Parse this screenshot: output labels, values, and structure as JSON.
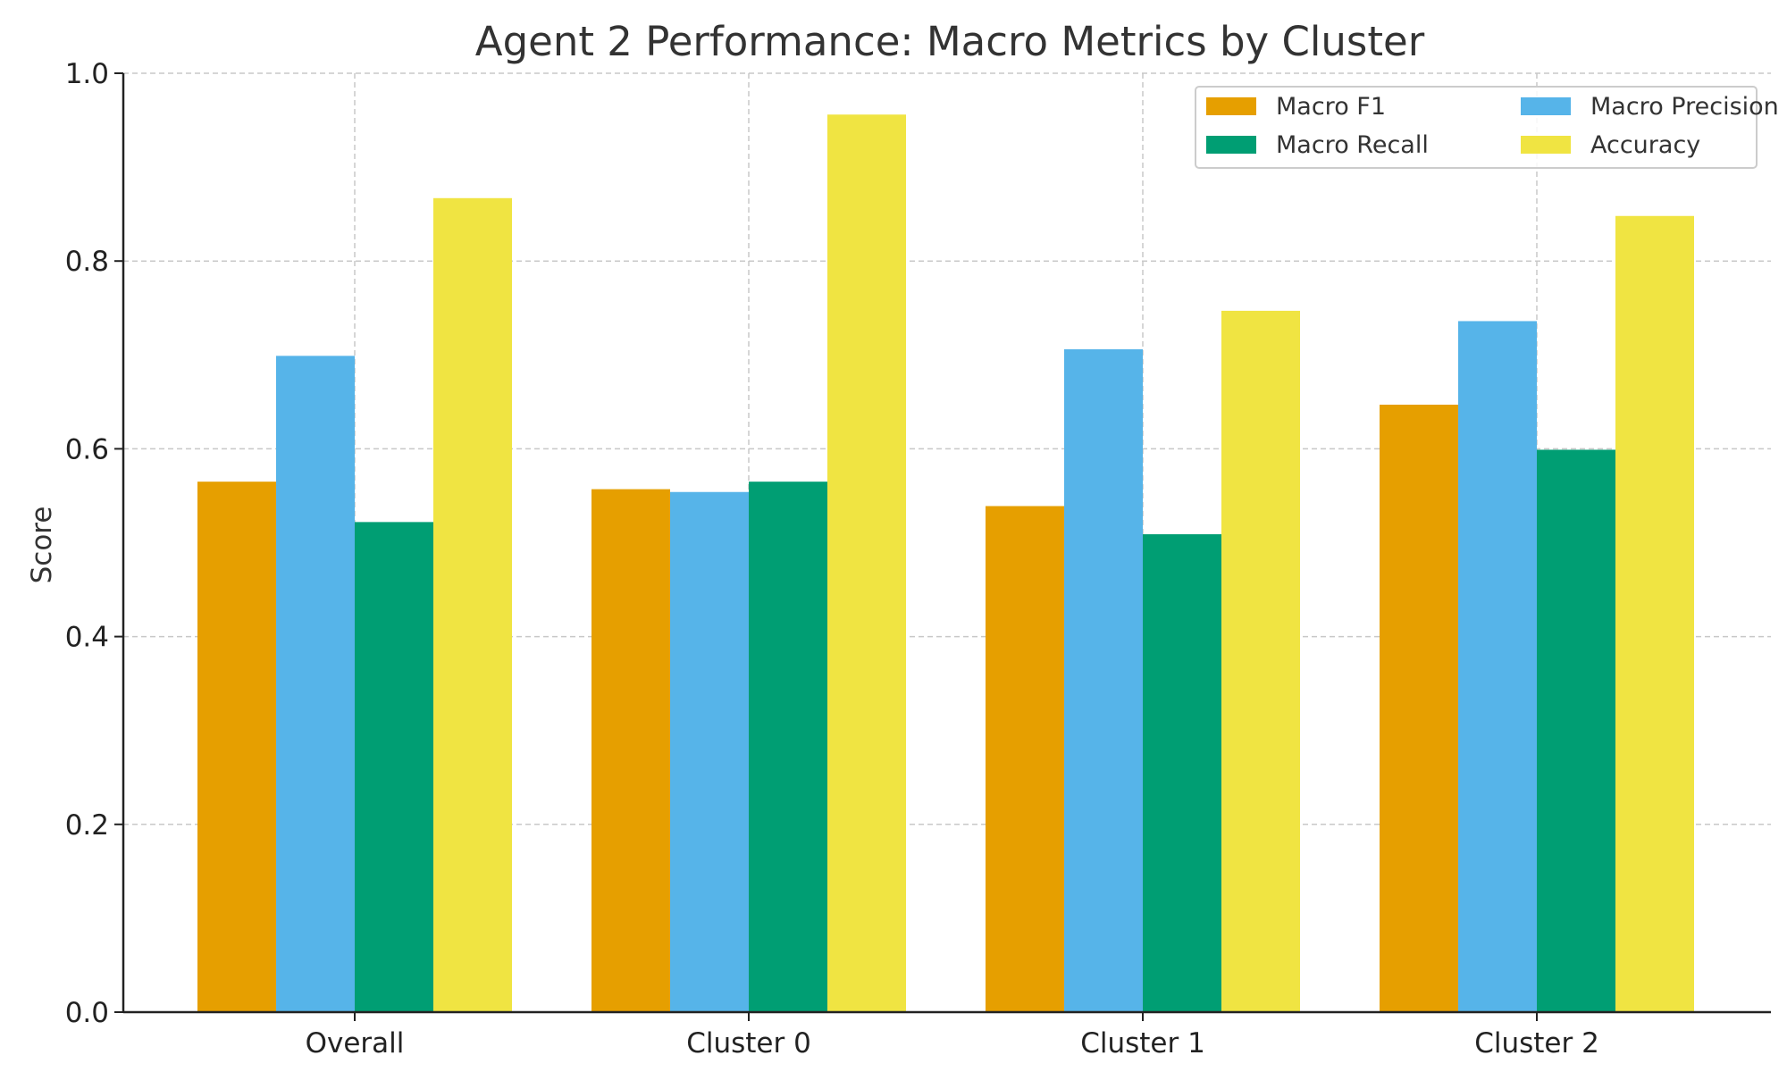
{
  "chart_data": {
    "type": "bar",
    "title": "Agent 2 Performance: Macro Metrics by Cluster",
    "xlabel": "",
    "ylabel": "Score",
    "ylim": [
      0,
      1.0
    ],
    "yticks": [
      "0.0",
      "0.2",
      "0.4",
      "0.6",
      "0.8",
      "1.0"
    ],
    "ytick_values": [
      0.0,
      0.2,
      0.4,
      0.6,
      0.8,
      1.0
    ],
    "grid": true,
    "legend_position": "top-right",
    "categories": [
      "Overall",
      "Cluster 0",
      "Cluster 1",
      "Cluster 2"
    ],
    "series": [
      {
        "name": "Macro F1",
        "color": "#E69F00",
        "values": [
          0.565,
          0.557,
          0.539,
          0.647
        ]
      },
      {
        "name": "Macro Precision",
        "color": "#56B4E9",
        "values": [
          0.699,
          0.554,
          0.706,
          0.736
        ]
      },
      {
        "name": "Macro Recall",
        "color": "#009E73",
        "values": [
          0.522,
          0.565,
          0.509,
          0.599
        ]
      },
      {
        "name": "Accuracy",
        "color": "#F0E442",
        "values": [
          0.867,
          0.956,
          0.747,
          0.848
        ]
      }
    ]
  }
}
